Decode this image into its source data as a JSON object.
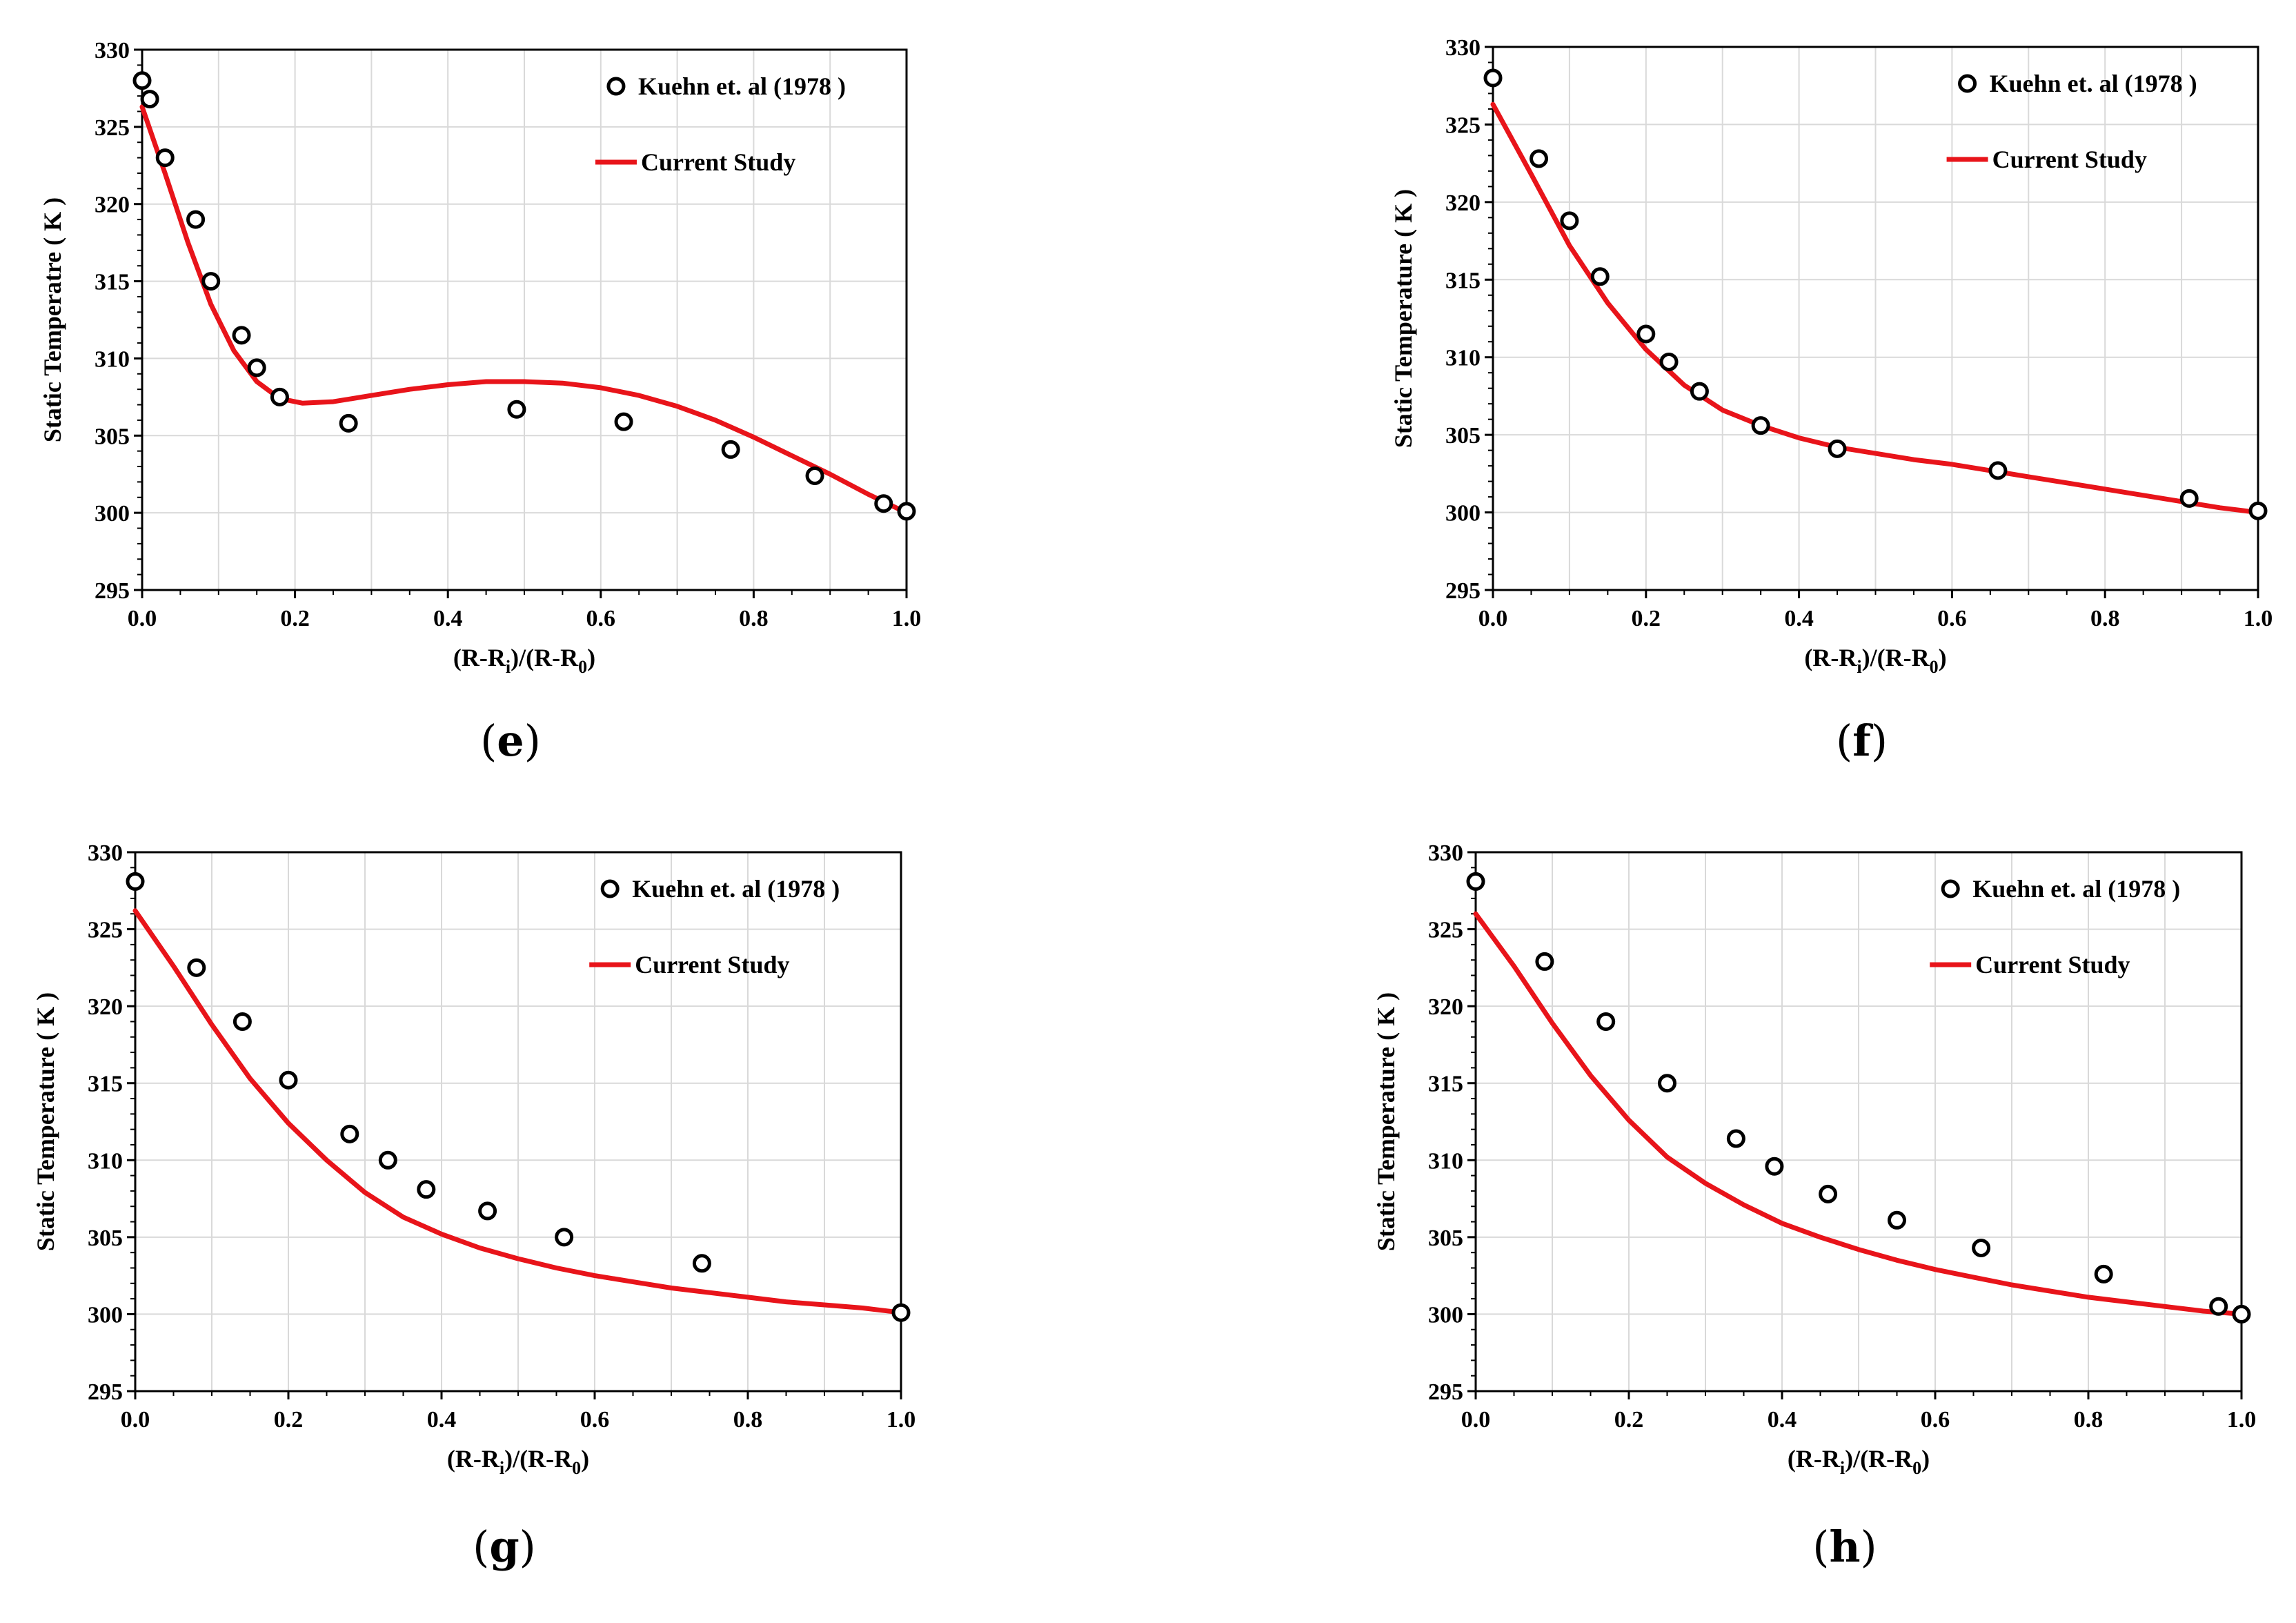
{
  "colors": {
    "marker": "#000000",
    "line": "#e8141a",
    "grid": "#d9d9d9",
    "axis": "#000000"
  },
  "chart_data": [
    {
      "panel": "e",
      "type": "line",
      "ylabel": "Static Temperatre ( K )",
      "xlabel_main": "(R-R",
      "xlabel_sub1": "i",
      "xlabel_mid": ")/(R-R",
      "xlabel_sub2": "0",
      "xlabel_end": ")",
      "xlim": [
        0,
        1
      ],
      "ylim": [
        295,
        330
      ],
      "xticks": [
        "0.0",
        "0.2",
        "0.4",
        "0.6",
        "0.8",
        "1.0"
      ],
      "yticks": [
        "295",
        "300",
        "305",
        "310",
        "315",
        "320",
        "325",
        "330"
      ],
      "legend": {
        "markers": "Kuehn et. al (1978 )",
        "line": "Current Study"
      },
      "series": [
        {
          "name": "Kuehn et. al (1978 )",
          "kind": "markers",
          "x": [
            0.0,
            0.01,
            0.03,
            0.07,
            0.09,
            0.13,
            0.15,
            0.18,
            0.27,
            0.49,
            0.63,
            0.77,
            0.88,
            0.97,
            1.0
          ],
          "y": [
            328.0,
            326.8,
            323.0,
            319.0,
            315.0,
            311.5,
            309.4,
            307.5,
            305.8,
            306.7,
            305.9,
            304.1,
            302.4,
            300.6,
            300.1
          ]
        },
        {
          "name": "Current Study",
          "kind": "line",
          "x": [
            0.0,
            0.03,
            0.06,
            0.09,
            0.12,
            0.15,
            0.18,
            0.21,
            0.25,
            0.3,
            0.35,
            0.4,
            0.45,
            0.5,
            0.55,
            0.6,
            0.65,
            0.7,
            0.75,
            0.8,
            0.85,
            0.9,
            0.95,
            1.0
          ],
          "y": [
            326.3,
            322.0,
            317.5,
            313.5,
            310.5,
            308.5,
            307.4,
            307.1,
            307.2,
            307.6,
            308.0,
            308.3,
            308.5,
            308.5,
            308.4,
            308.1,
            307.6,
            306.9,
            306.0,
            304.9,
            303.7,
            302.5,
            301.2,
            300.0
          ]
        }
      ]
    },
    {
      "panel": "f",
      "type": "line",
      "ylabel": "Static Temperature ( K )",
      "xlabel_main": "(R-R",
      "xlabel_sub1": "i",
      "xlabel_mid": ")/(R-R",
      "xlabel_sub2": "0",
      "xlabel_end": ")",
      "xlim": [
        0,
        1
      ],
      "ylim": [
        295,
        330
      ],
      "xticks": [
        "0.0",
        "0.2",
        "0.4",
        "0.6",
        "0.8",
        "1.0"
      ],
      "yticks": [
        "295",
        "300",
        "305",
        "310",
        "315",
        "320",
        "325",
        "330"
      ],
      "legend": {
        "markers": "Kuehn et. al (1978 )",
        "line": "Current Study"
      },
      "series": [
        {
          "name": "Kuehn et. al (1978 )",
          "kind": "markers",
          "x": [
            0.0,
            0.06,
            0.1,
            0.14,
            0.2,
            0.23,
            0.27,
            0.35,
            0.45,
            0.66,
            0.91,
            1.0
          ],
          "y": [
            328.0,
            322.8,
            318.8,
            315.2,
            311.5,
            309.7,
            307.8,
            305.6,
            304.1,
            302.7,
            300.9,
            300.1
          ]
        },
        {
          "name": "Current Study",
          "kind": "line",
          "x": [
            0.0,
            0.05,
            0.1,
            0.15,
            0.2,
            0.25,
            0.3,
            0.35,
            0.4,
            0.45,
            0.5,
            0.55,
            0.6,
            0.65,
            0.7,
            0.75,
            0.8,
            0.85,
            0.9,
            0.95,
            1.0
          ],
          "y": [
            326.3,
            321.8,
            317.2,
            313.5,
            310.5,
            308.2,
            306.6,
            305.6,
            304.8,
            304.2,
            303.8,
            303.4,
            303.1,
            302.7,
            302.3,
            301.9,
            301.5,
            301.1,
            300.7,
            300.3,
            300.0
          ]
        }
      ]
    },
    {
      "panel": "g",
      "type": "line",
      "ylabel": "Static Temperature ( K )",
      "xlabel_main": "(R-R",
      "xlabel_sub1": "i",
      "xlabel_mid": ")/(R-R",
      "xlabel_sub2": "0",
      "xlabel_end": ")",
      "xlim": [
        0,
        1
      ],
      "ylim": [
        295,
        330
      ],
      "xticks": [
        "0.0",
        "0.2",
        "0.4",
        "0.6",
        "0.8",
        "1.0"
      ],
      "yticks": [
        "295",
        "300",
        "305",
        "310",
        "315",
        "320",
        "325",
        "330"
      ],
      "legend": {
        "markers": "Kuehn et. al (1978 )",
        "line": "Current Study"
      },
      "series": [
        {
          "name": "Kuehn et. al (1978 )",
          "kind": "markers",
          "x": [
            0.0,
            0.08,
            0.14,
            0.2,
            0.28,
            0.33,
            0.38,
            0.46,
            0.56,
            0.74,
            1.0
          ],
          "y": [
            328.1,
            322.5,
            319.0,
            315.2,
            311.7,
            310.0,
            308.1,
            306.7,
            305.0,
            303.3,
            300.1
          ]
        },
        {
          "name": "Current Study",
          "kind": "line",
          "x": [
            0.0,
            0.05,
            0.1,
            0.15,
            0.2,
            0.25,
            0.3,
            0.35,
            0.4,
            0.45,
            0.5,
            0.55,
            0.6,
            0.65,
            0.7,
            0.75,
            0.8,
            0.85,
            0.9,
            0.95,
            1.0
          ],
          "y": [
            326.2,
            322.6,
            318.8,
            315.3,
            312.4,
            310.0,
            307.9,
            306.3,
            305.2,
            304.3,
            303.6,
            303.0,
            302.5,
            302.1,
            301.7,
            301.4,
            301.1,
            300.8,
            300.6,
            300.4,
            300.1
          ]
        }
      ]
    },
    {
      "panel": "h",
      "type": "line",
      "ylabel": "Static Temperature ( K )",
      "xlabel_main": "(R-R",
      "xlabel_sub1": "i",
      "xlabel_mid": ")/(R-R",
      "xlabel_sub2": "0",
      "xlabel_end": ")",
      "xlim": [
        0,
        1
      ],
      "ylim": [
        295,
        330
      ],
      "xticks": [
        "0.0",
        "0.2",
        "0.4",
        "0.6",
        "0.8",
        "1.0"
      ],
      "yticks": [
        "295",
        "300",
        "305",
        "310",
        "315",
        "320",
        "325",
        "330"
      ],
      "legend": {
        "markers": "Kuehn et. al (1978 )",
        "line": "Current Study"
      },
      "series": [
        {
          "name": "Kuehn et. al (1978 )",
          "kind": "markers",
          "x": [
            0.0,
            0.09,
            0.17,
            0.25,
            0.34,
            0.39,
            0.46,
            0.55,
            0.66,
            0.82,
            0.97,
            1.0
          ],
          "y": [
            328.1,
            322.9,
            319.0,
            315.0,
            311.4,
            309.6,
            307.8,
            306.1,
            304.3,
            302.6,
            300.5,
            300.0
          ]
        },
        {
          "name": "Current Study",
          "kind": "line",
          "x": [
            0.0,
            0.05,
            0.1,
            0.15,
            0.2,
            0.25,
            0.3,
            0.35,
            0.4,
            0.45,
            0.5,
            0.55,
            0.6,
            0.65,
            0.7,
            0.75,
            0.8,
            0.85,
            0.9,
            0.95,
            1.0
          ],
          "y": [
            326.0,
            322.6,
            318.9,
            315.5,
            312.6,
            310.2,
            308.5,
            307.1,
            305.9,
            305.0,
            304.2,
            303.5,
            302.9,
            302.4,
            301.9,
            301.5,
            301.1,
            300.8,
            300.5,
            300.2,
            300.0
          ]
        }
      ]
    }
  ]
}
